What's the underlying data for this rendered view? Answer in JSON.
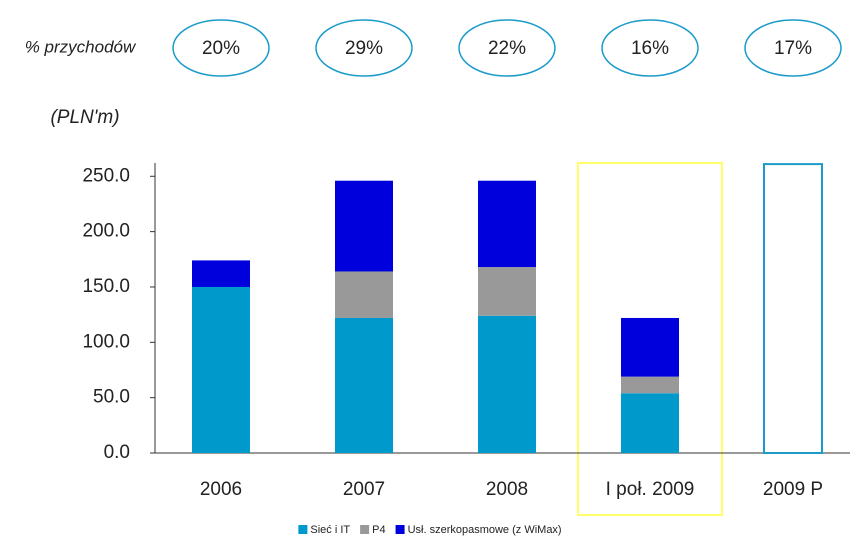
{
  "chart_data": {
    "type": "stacked_bar",
    "revenue_share_label": "% przychodów",
    "revenue_share": [
      20,
      29,
      22,
      16,
      17
    ],
    "revenue_share_labels": [
      "20%",
      "29%",
      "22%",
      "16%",
      "17%"
    ],
    "y_label": "(PLN'm)",
    "categories": [
      "2006",
      "2007",
      "2008",
      "I poł. 2009",
      "2009 P"
    ],
    "series": [
      {
        "name": "Sieć i IT",
        "color": "#0099cc",
        "values": [
          150,
          122,
          124,
          54,
          null
        ]
      },
      {
        "name": "P4",
        "color": "#999999",
        "values": [
          null,
          42,
          44,
          15,
          null
        ]
      },
      {
        "name": "Usł. szerkopasmowe (z WiMax)",
        "color": "#0000dd",
        "values": [
          24,
          82,
          78,
          53,
          null
        ]
      }
    ],
    "outline_values": [
      null,
      null,
      null,
      null,
      261
    ],
    "outline_color": "#1a9bc9",
    "highlight_index": 3,
    "highlight_color": "#ffff66",
    "ylim": [
      0,
      262
    ],
    "yticks": [
      {
        "value": 0,
        "label": "0.0"
      },
      {
        "value": 50,
        "label": "50.0"
      },
      {
        "value": 100,
        "label": "100.0"
      },
      {
        "value": 150,
        "label": "150.0"
      },
      {
        "value": 200,
        "label": "200.0"
      },
      {
        "value": 250,
        "label": "250.0"
      }
    ],
    "legend": "bottom"
  }
}
